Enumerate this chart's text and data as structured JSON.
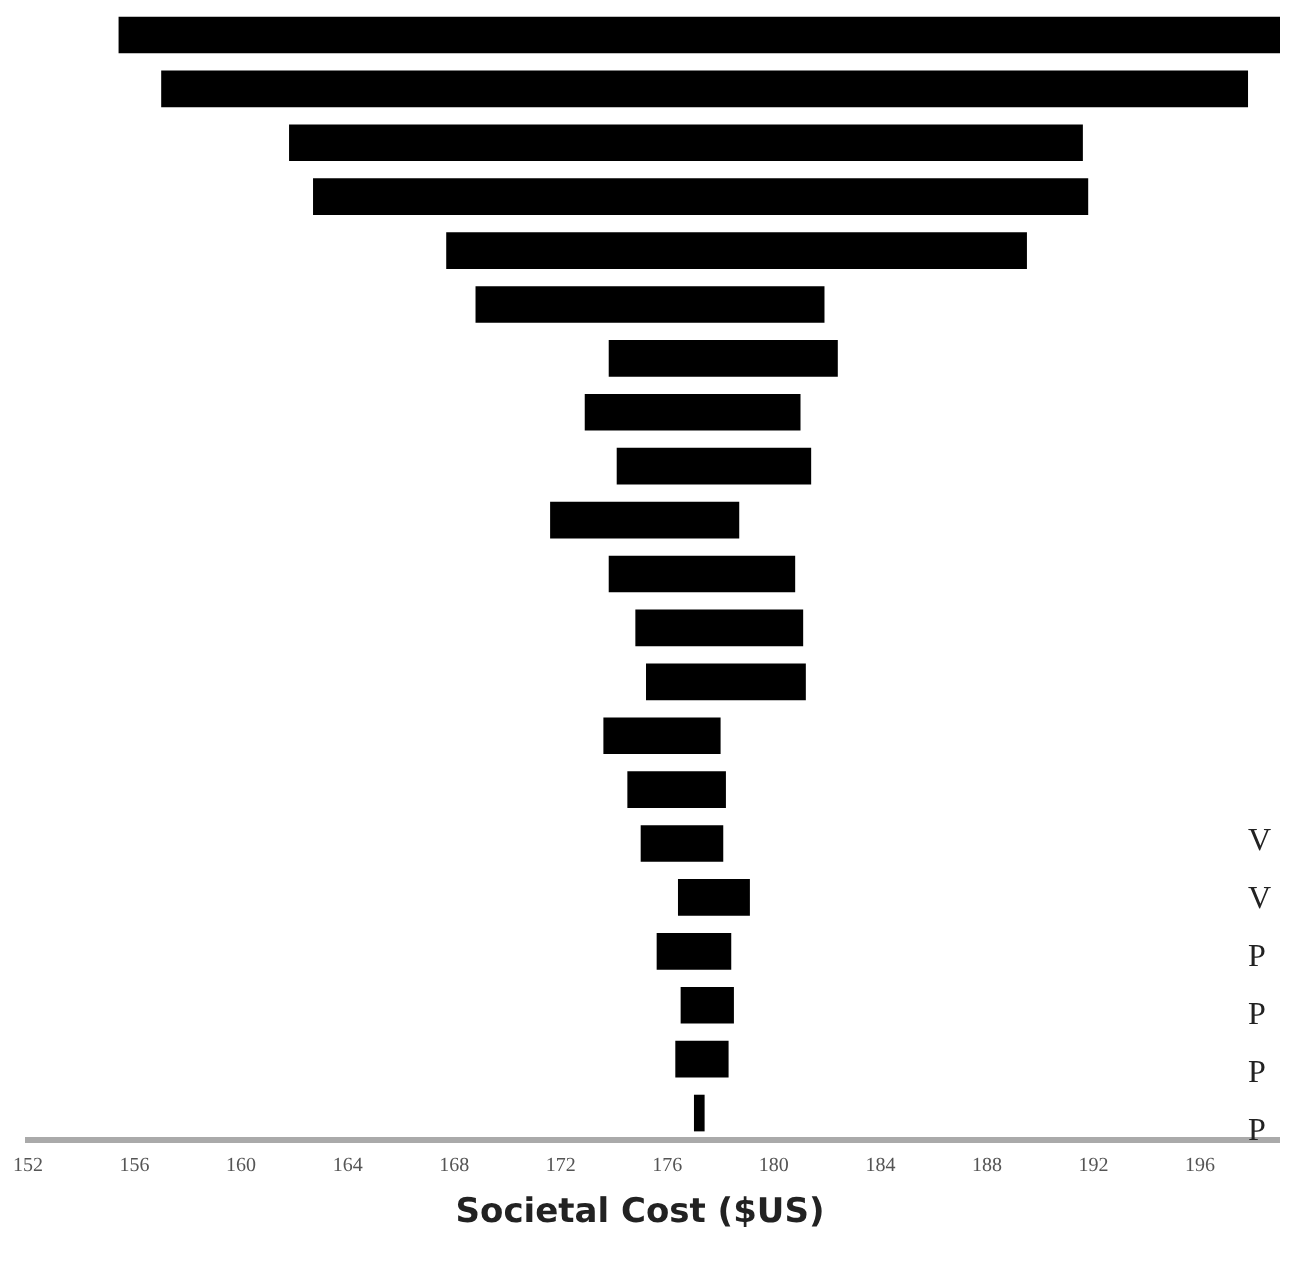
{
  "chart_data": {
    "type": "bar",
    "orientation": "horizontal",
    "xlabel": "Societal Cost ($US)",
    "categories": [
      null,
      null,
      null,
      null,
      null,
      null,
      null,
      null,
      null,
      null,
      null,
      null,
      null,
      null,
      null,
      null,
      null,
      null,
      null,
      null,
      null
    ],
    "base": [
      155.4,
      157.0,
      161.8,
      162.7,
      167.7,
      168.8,
      173.8,
      172.9,
      174.1,
      171.6,
      173.8,
      174.8,
      175.2,
      173.6,
      174.5,
      175.0,
      176.4,
      175.6,
      176.5,
      176.3,
      177.0
    ],
    "values": [
      43.6,
      40.8,
      29.8,
      29.1,
      21.8,
      13.1,
      8.6,
      8.1,
      7.3,
      7.1,
      7.0,
      6.3,
      6.0,
      4.4,
      3.7,
      3.1,
      2.7,
      2.8,
      2.0,
      2.0,
      0.4
    ],
    "color": "#000000",
    "xlim": [
      152,
      199
    ],
    "xticks": [
      152,
      156,
      160,
      164,
      168,
      172,
      176,
      180,
      184,
      188,
      192,
      196
    ],
    "grid": false,
    "legend": false,
    "annotations": [
      "V",
      "V",
      "P",
      "P",
      "P",
      "P"
    ]
  }
}
